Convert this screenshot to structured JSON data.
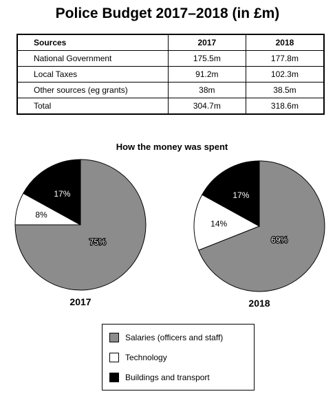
{
  "title": "Police Budget 2017–2018 (in £m)",
  "table": {
    "headers": [
      "Sources",
      "2017",
      "2018"
    ],
    "rows": [
      [
        "National Government",
        "175.5m",
        "177.8m"
      ],
      [
        "Local Taxes",
        "91.2m",
        "102.3m"
      ],
      [
        "Other sources (eg grants)",
        "38m",
        "38.5m"
      ],
      [
        "Total",
        "304.7m",
        "318.6m"
      ]
    ]
  },
  "colors": {
    "salaries": "#8c8c8c",
    "technology": "#ffffff",
    "buildings": "#000000"
  },
  "chart_data": {
    "type": "pie",
    "title": "How the money was spent",
    "categories": [
      "Salaries (officers and staff)",
      "Technology",
      "Buildings and transport"
    ],
    "pies": [
      {
        "label": "2017",
        "values": [
          75,
          8,
          17
        ],
        "labels": [
          "75%",
          "8%",
          "17%"
        ]
      },
      {
        "label": "2018",
        "values": [
          69,
          14,
          17
        ],
        "labels": [
          "69%",
          "14%",
          "17%"
        ]
      }
    ],
    "legend_position": "bottom"
  }
}
